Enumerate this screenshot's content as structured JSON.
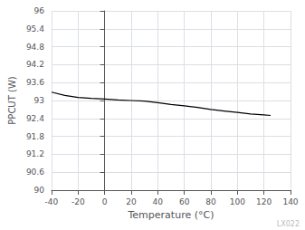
{
  "chart_data": {
    "type": "line",
    "xlabel": "Temperature (°C)",
    "ylabel": "PPCUT (W)",
    "annotation": "LX022",
    "x": [
      -40,
      -30,
      -20,
      -10,
      0,
      10,
      20,
      30,
      40,
      50,
      60,
      70,
      80,
      90,
      100,
      110,
      120,
      125
    ],
    "values": [
      93.28,
      93.17,
      93.1,
      93.07,
      93.05,
      93.02,
      93.0,
      92.98,
      92.93,
      92.87,
      92.82,
      92.77,
      92.7,
      92.65,
      92.6,
      92.55,
      92.52,
      92.5
    ],
    "color": "#000000",
    "xlim": [
      -40,
      140
    ],
    "xticks": [
      -40,
      -20,
      0,
      20,
      40,
      60,
      80,
      100,
      120,
      140
    ],
    "ylim": [
      90,
      96
    ],
    "yticks": [
      90,
      90.6,
      91.2,
      91.8,
      92.4,
      93,
      93.6,
      94.2,
      94.8,
      95.4,
      96
    ],
    "grid": true
  }
}
